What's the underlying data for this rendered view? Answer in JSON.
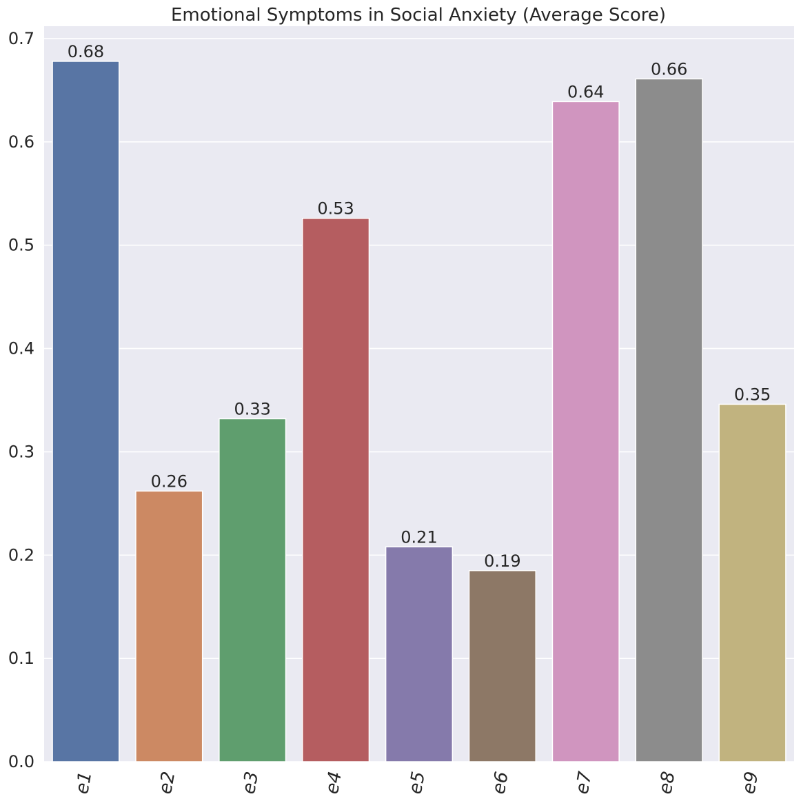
{
  "chart_data": {
    "type": "bar",
    "title": "Emotional Symptoms in Social Anxiety (Average Score)",
    "xlabel": "",
    "ylabel": "",
    "categories": [
      "e1",
      "e2",
      "e3",
      "e4",
      "e5",
      "e6",
      "e7",
      "e8",
      "e9"
    ],
    "values": [
      0.678,
      0.262,
      0.332,
      0.526,
      0.208,
      0.185,
      0.639,
      0.661,
      0.346
    ],
    "value_labels": [
      "0.68",
      "0.26",
      "0.33",
      "0.53",
      "0.21",
      "0.19",
      "0.64",
      "0.66",
      "0.35"
    ],
    "colors": [
      "#5875a4",
      "#cc8963",
      "#5f9e6e",
      "#b55d60",
      "#857aab",
      "#8d7866",
      "#d095bf",
      "#8c8c8c",
      "#c1b37f"
    ],
    "ylim": [
      0,
      0.712
    ],
    "yticks": [
      0.0,
      0.1,
      0.2,
      0.3,
      0.4,
      0.5,
      0.6,
      0.7
    ],
    "ytick_labels": [
      "0.0",
      "0.1",
      "0.2",
      "0.3",
      "0.4",
      "0.5",
      "0.6",
      "0.7"
    ],
    "grid": true,
    "background": "#eaeaf2",
    "grid_color": "#ffffff"
  }
}
